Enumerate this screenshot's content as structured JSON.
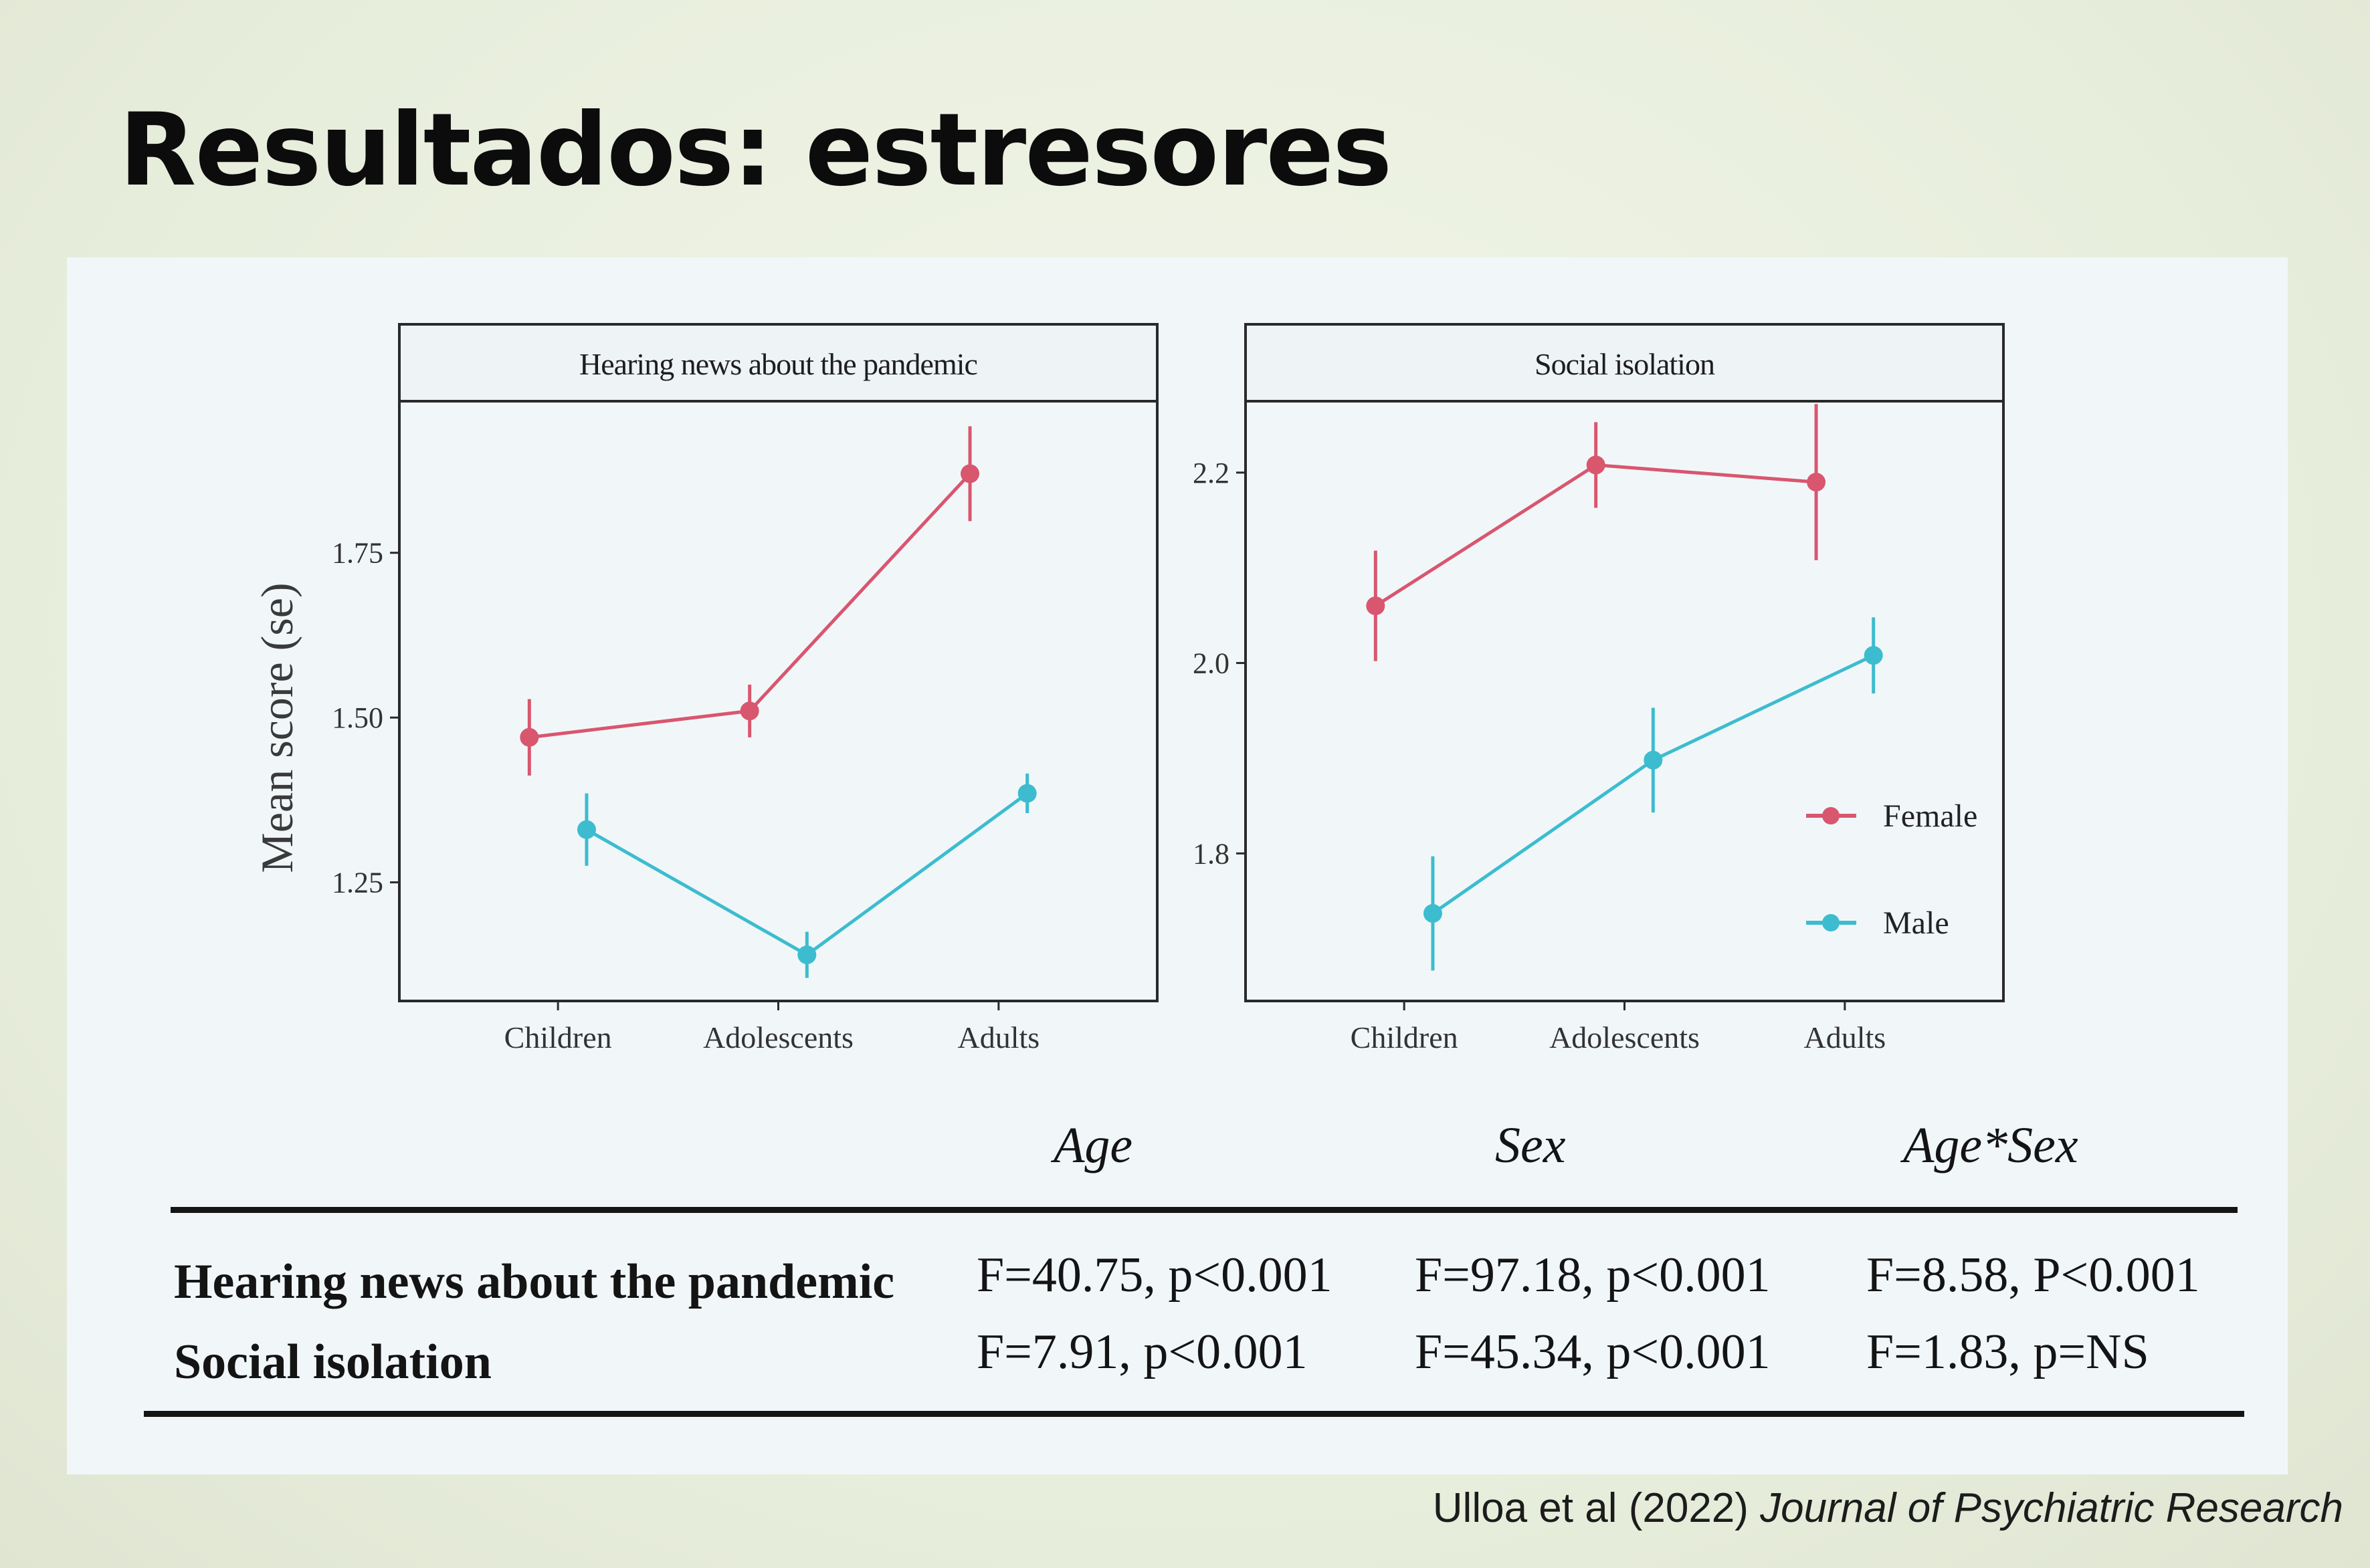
{
  "slide": {
    "title": "Resultados: estresores",
    "citation_authors": "Ulloa et al (2022)",
    "citation_journal": "Journal of Psychiatric Research"
  },
  "colors": {
    "female": "#d9566f",
    "male": "#3dbccf",
    "axis": "#2a2a2a"
  },
  "chart_data": [
    {
      "type": "line",
      "title": "Hearing news about the pandemic",
      "ylabel": "Mean score (se)",
      "xlabel": "",
      "categories": [
        "Children",
        "Adolescents",
        "Adults"
      ],
      "yticks": [
        "1.25",
        "1.50",
        "1.75"
      ],
      "ylim": [
        1.07,
        1.98
      ],
      "grid": false,
      "legend": "none",
      "series": [
        {
          "name": "Female",
          "x_offset": -0.13,
          "values": [
            1.47,
            1.51,
            1.87
          ],
          "err": [
            0.058,
            0.04,
            0.072
          ]
        },
        {
          "name": "Male",
          "x_offset": 0.13,
          "values": [
            1.33,
            1.14,
            1.385
          ],
          "err": [
            0.055,
            0.035,
            0.03
          ]
        }
      ]
    },
    {
      "type": "line",
      "title": "Social isolation",
      "ylabel": "",
      "xlabel": "",
      "categories": [
        "Children",
        "Adolescents",
        "Adults"
      ],
      "yticks": [
        "1.8",
        "2.0",
        "2.2"
      ],
      "ylim": [
        1.645,
        2.275
      ],
      "grid": false,
      "legend": "right",
      "series": [
        {
          "name": "Female",
          "x_offset": -0.13,
          "values": [
            2.06,
            2.208,
            2.19
          ],
          "err": [
            0.058,
            0.045,
            0.082
          ]
        },
        {
          "name": "Male",
          "x_offset": 0.13,
          "values": [
            1.737,
            1.898,
            2.008
          ],
          "err": [
            0.06,
            0.055,
            0.04
          ]
        }
      ]
    }
  ],
  "stats_table": {
    "headers": [
      "Age",
      "Sex",
      "Age*Sex"
    ],
    "rows": [
      {
        "label": "Hearing news about the pandemic",
        "cells": [
          "F=40.75, p<0.001",
          "F=97.18, p<0.001",
          "F=8.58, P<0.001"
        ]
      },
      {
        "label": "Social isolation",
        "cells": [
          "F=7.91, p<0.001",
          "F=45.34, p<0.001",
          "F=1.83, p=NS"
        ]
      }
    ]
  }
}
